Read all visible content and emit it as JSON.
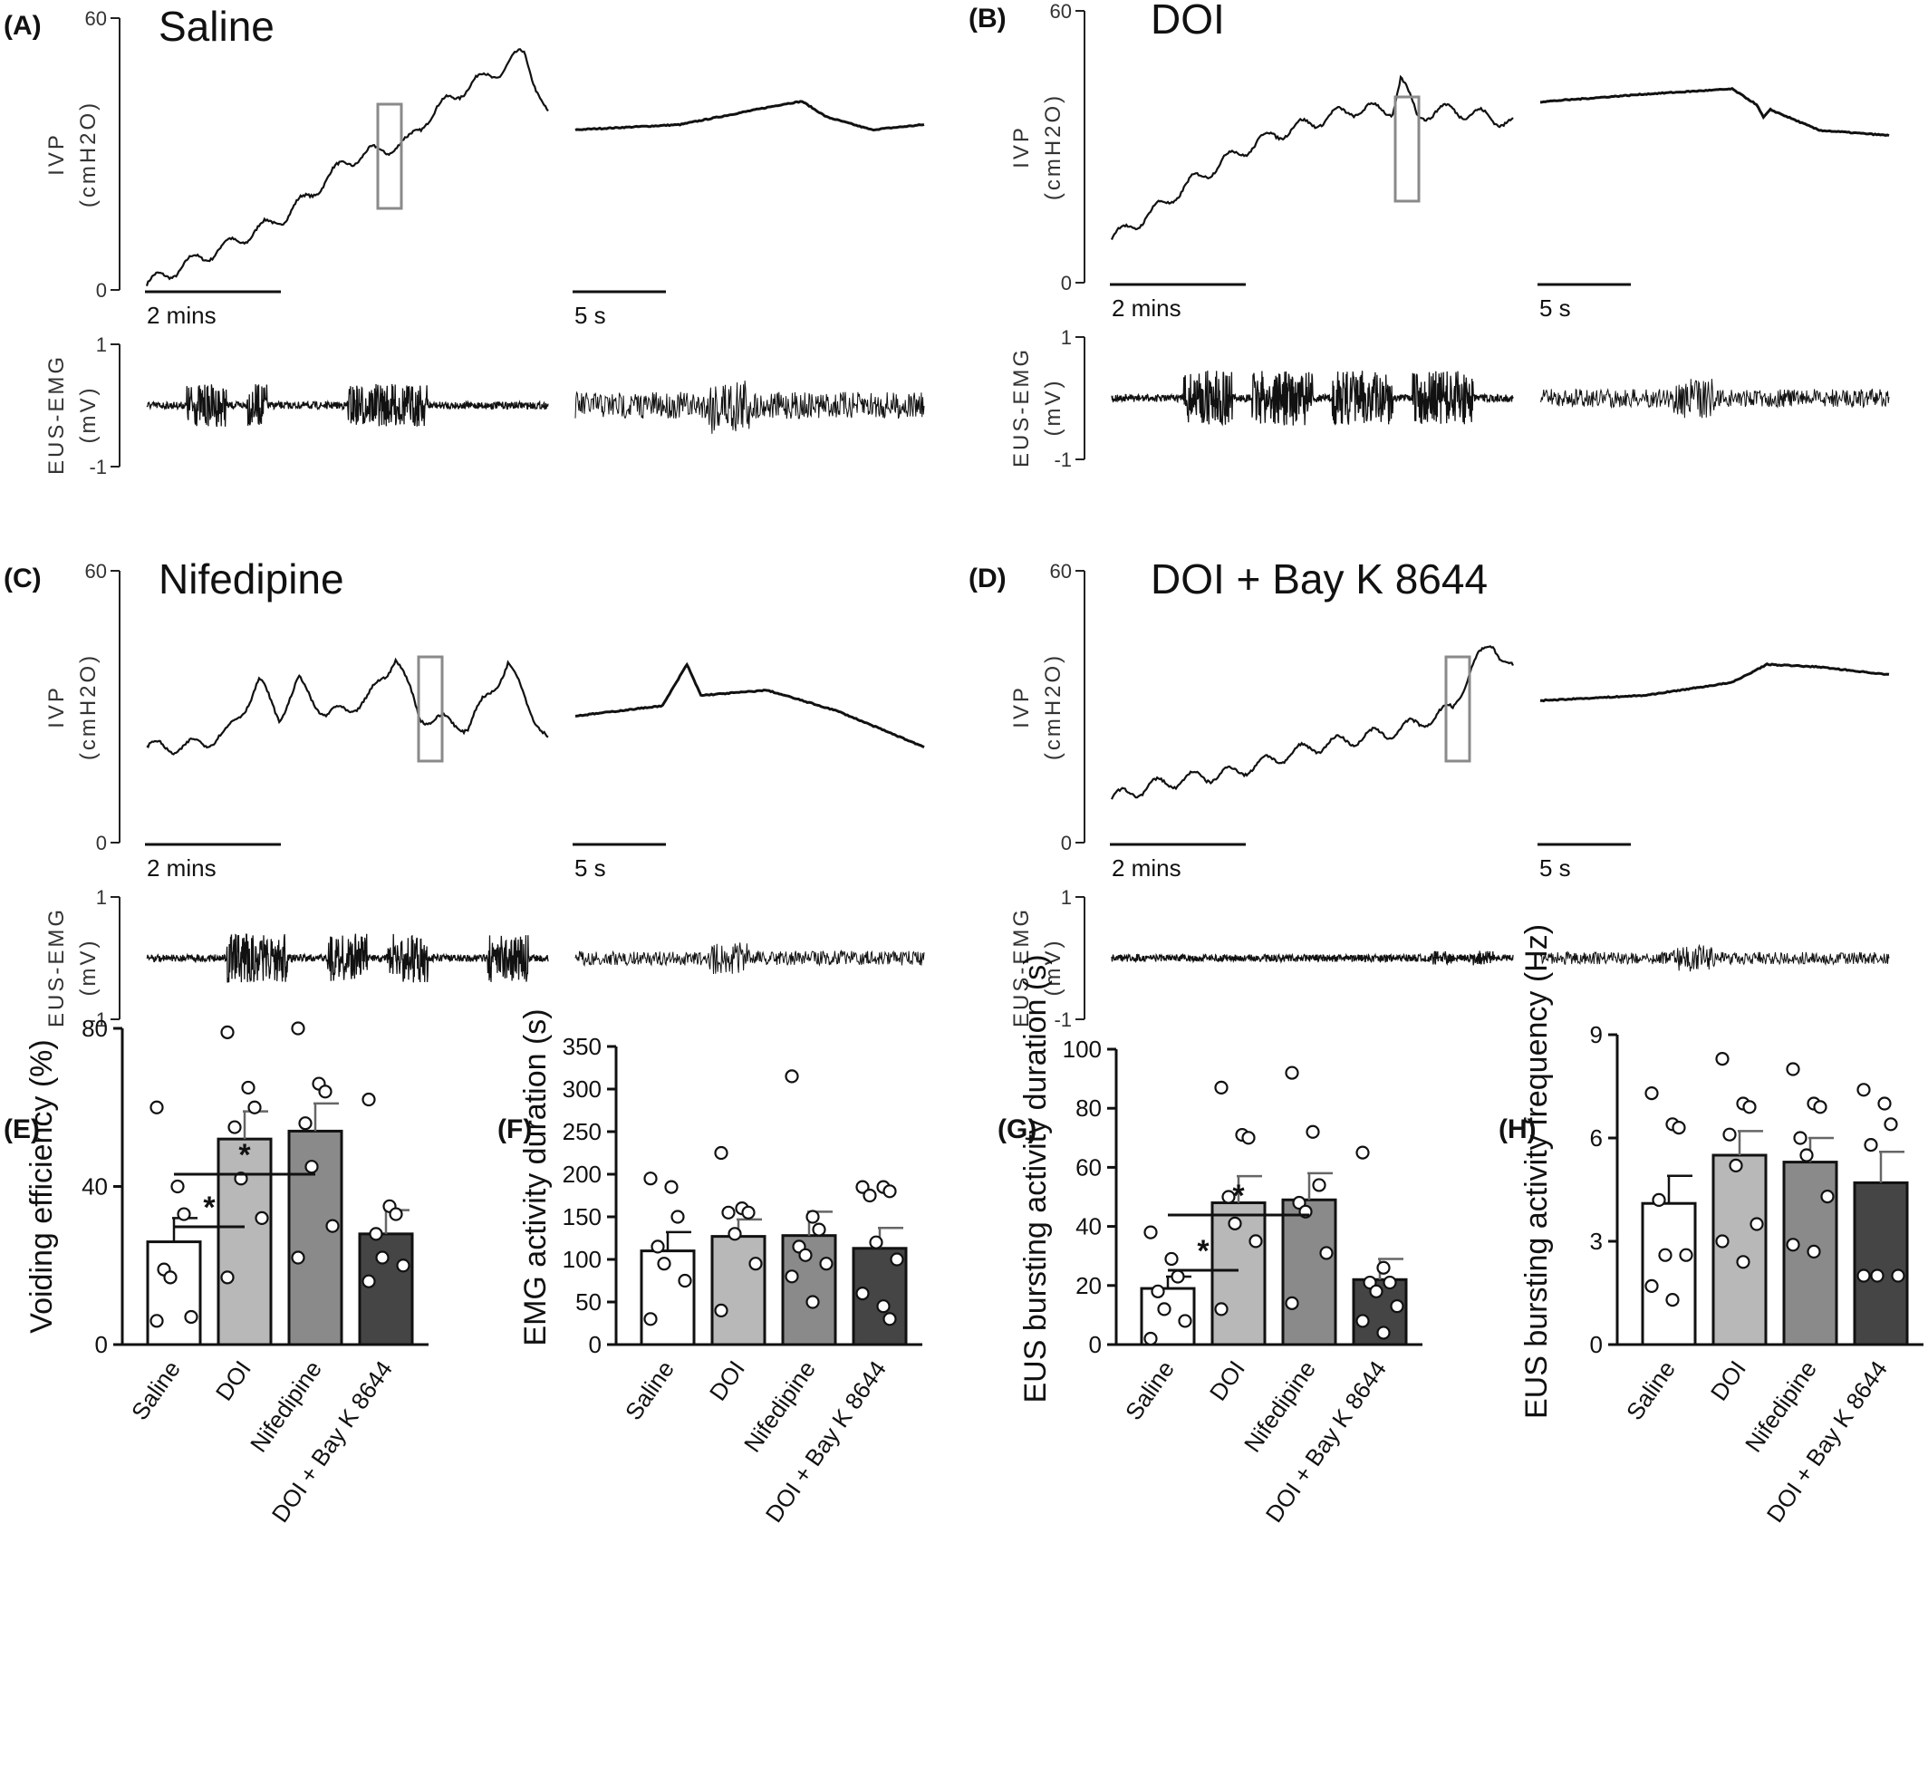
{
  "trace_panels": [
    {
      "label": "(A)",
      "condition": "Saline",
      "ivp_axis_label": "IVP",
      "ivp_unit": "(cmH2O)",
      "ivp_ticks": [
        "60",
        "0"
      ],
      "emg_axis_label": "EUS-EMG",
      "emg_unit": "(mV)",
      "emg_ticks": [
        "1",
        "-1"
      ],
      "scale_long": "2 mins",
      "scale_short": "5 s"
    },
    {
      "label": "(B)",
      "condition": "DOI",
      "ivp_axis_label": "IVP",
      "ivp_unit": "(cmH2O)",
      "ivp_ticks": [
        "60",
        "0"
      ],
      "emg_axis_label": "EUS-EMG",
      "emg_unit": "(mV)",
      "emg_ticks": [
        "1",
        "-1"
      ],
      "scale_long": "2 mins",
      "scale_short": "5 s"
    },
    {
      "label": "(C)",
      "condition": "Nifedipine",
      "ivp_axis_label": "IVP",
      "ivp_unit": "(cmH2O)",
      "ivp_ticks": [
        "60",
        "0"
      ],
      "emg_axis_label": "EUS-EMG",
      "emg_unit": "(mV)",
      "emg_ticks": [
        "1",
        "-1"
      ],
      "scale_long": "2 mins",
      "scale_short": "5 s"
    },
    {
      "label": "(D)",
      "condition": "DOI + Bay K 8644",
      "ivp_axis_label": "IVP",
      "ivp_unit": "(cmH2O)",
      "ivp_ticks": [
        "60",
        "0"
      ],
      "emg_axis_label": "EUS-EMG",
      "emg_unit": "(mV)",
      "emg_ticks": [
        "1",
        "-1"
      ],
      "scale_long": "2 mins",
      "scale_short": "5 s"
    }
  ],
  "chart_data": [
    {
      "label": "(E)",
      "type": "bar",
      "categories": [
        "Saline",
        "DOI",
        "Nifedipine",
        "DOI + Bay K 8644"
      ],
      "values": [
        26,
        52,
        54,
        28
      ],
      "sem": [
        6,
        7,
        7,
        6
      ],
      "points": [
        [
          60,
          40,
          33,
          19,
          17,
          7,
          6
        ],
        [
          79,
          65,
          60,
          55,
          42,
          32,
          17
        ],
        [
          80,
          66,
          64,
          56,
          45,
          30,
          22
        ],
        [
          62,
          35,
          33,
          28,
          22,
          20,
          16
        ]
      ],
      "ylabel": "Voiding efficiency (%)",
      "ylim": [
        0,
        80
      ],
      "yticks": [
        "0",
        "40",
        "80"
      ],
      "significance": [
        {
          "from": 0,
          "to": 1,
          "label": "*"
        },
        {
          "from": 0,
          "to": 2,
          "label": "*"
        }
      ]
    },
    {
      "label": "(F)",
      "type": "bar",
      "categories": [
        "Saline",
        "DOI",
        "Nifedipine",
        "DOI + Bay K 8644"
      ],
      "values": [
        110,
        127,
        128,
        113
      ],
      "sem": [
        22,
        20,
        28,
        24
      ],
      "points": [
        [
          195,
          185,
          150,
          115,
          95,
          75,
          30
        ],
        [
          225,
          160,
          155,
          155,
          130,
          95,
          40
        ],
        [
          315,
          150,
          135,
          115,
          105,
          95,
          80,
          50
        ],
        [
          185,
          185,
          180,
          175,
          120,
          100,
          60,
          45,
          30
        ]
      ],
      "ylabel": "EMG activity duration (s)",
      "ylim": [
        0,
        350
      ],
      "yticks": [
        "0",
        "50",
        "100",
        "150",
        "200",
        "250",
        "300",
        "350"
      ],
      "significance": []
    },
    {
      "label": "(G)",
      "type": "bar",
      "categories": [
        "Saline",
        "DOI",
        "Nifedipine",
        "DOI + Bay K 8644"
      ],
      "values": [
        19,
        48,
        49,
        22
      ],
      "sem": [
        4,
        9,
        9,
        7
      ],
      "points": [
        [
          38,
          29,
          23,
          18,
          12,
          8,
          2
        ],
        [
          87,
          71,
          70,
          50,
          41,
          35,
          12
        ],
        [
          92,
          72,
          54,
          48,
          45,
          31,
          14
        ],
        [
          65,
          26,
          21,
          21,
          18,
          13,
          8,
          4
        ]
      ],
      "ylabel": "EUS bursting activity duration (s)",
      "ylim": [
        0,
        100
      ],
      "yticks": [
        "0",
        "20",
        "40",
        "60",
        "80",
        "100"
      ],
      "significance": [
        {
          "from": 0,
          "to": 1,
          "label": "*"
        },
        {
          "from": 0,
          "to": 2,
          "label": "*"
        }
      ]
    },
    {
      "label": "(H)",
      "type": "bar",
      "categories": [
        "Saline",
        "DOI",
        "Nifedipine",
        "DOI + Bay K 8644"
      ],
      "values": [
        4.1,
        5.5,
        5.3,
        4.7
      ],
      "sem": [
        0.8,
        0.7,
        0.7,
        0.9
      ],
      "points": [
        [
          7.3,
          6.4,
          6.3,
          4.2,
          2.6,
          2.6,
          1.7,
          1.3
        ],
        [
          8.3,
          7.0,
          6.9,
          6.1,
          5.2,
          3.5,
          3.0,
          2.4
        ],
        [
          8.0,
          7.0,
          6.9,
          6.0,
          5.5,
          4.3,
          2.9,
          2.7
        ],
        [
          7.4,
          7.0,
          6.4,
          5.8,
          2.0,
          2.0,
          2.0
        ]
      ],
      "ylabel": "EUS bursting activity frequency (Hz)",
      "ylim": [
        0,
        9
      ],
      "yticks": [
        "0",
        "3",
        "6",
        "9"
      ],
      "significance": []
    }
  ],
  "style": {
    "bar_fill": [
      "#ffffff",
      "#b8b8b8",
      "#8a8a8a",
      "#454545"
    ],
    "bar_stroke": "#111111",
    "trace_color": "#111111",
    "box_color": "#8a8a8a",
    "point_fill": "#ffffff"
  }
}
